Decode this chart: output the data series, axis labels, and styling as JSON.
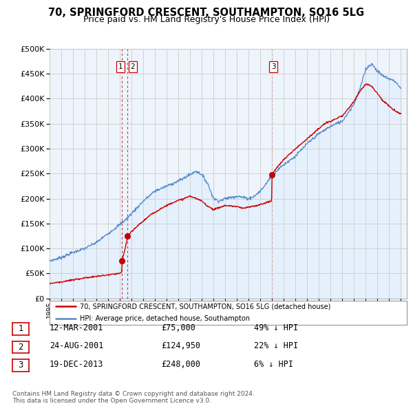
{
  "title": "70, SPRINGFORD CRESCENT, SOUTHAMPTON, SO16 5LG",
  "subtitle": "Price paid vs. HM Land Registry's House Price Index (HPI)",
  "ytick_values": [
    0,
    50000,
    100000,
    150000,
    200000,
    250000,
    300000,
    350000,
    400000,
    450000,
    500000
  ],
  "xlim_start": 1995.0,
  "xlim_end": 2025.5,
  "ylim_min": 0,
  "ylim_max": 500000,
  "hpi_color": "#5588cc",
  "hpi_fill_color": "#ddeeff",
  "price_color": "#cc0000",
  "sale_marker_color": "#cc0000",
  "vline_color": "#cc0000",
  "grid_color": "#cccccc",
  "bg_color": "#ffffff",
  "plot_bg_color": "#eef4fb",
  "sales": [
    {
      "date_num": 2001.19,
      "price": 75000,
      "label": "1"
    },
    {
      "date_num": 2001.65,
      "price": 124950,
      "label": "2"
    },
    {
      "date_num": 2013.97,
      "price": 248000,
      "label": "3"
    }
  ],
  "table_rows": [
    {
      "num": "1",
      "date": "12-MAR-2001",
      "price": "£75,000",
      "pct": "49% ↓ HPI"
    },
    {
      "num": "2",
      "date": "24-AUG-2001",
      "price": "£124,950",
      "pct": "22% ↓ HPI"
    },
    {
      "num": "3",
      "date": "19-DEC-2013",
      "price": "£248,000",
      "pct": "6% ↓ HPI"
    }
  ],
  "legend_line1": "70, SPRINGFORD CRESCENT, SOUTHAMPTON, SO16 5LG (detached house)",
  "legend_line2": "HPI: Average price, detached house, Southampton",
  "footer": "Contains HM Land Registry data © Crown copyright and database right 2024.\nThis data is licensed under the Open Government Licence v3.0.",
  "title_fontsize": 10.5,
  "subtitle_fontsize": 9
}
